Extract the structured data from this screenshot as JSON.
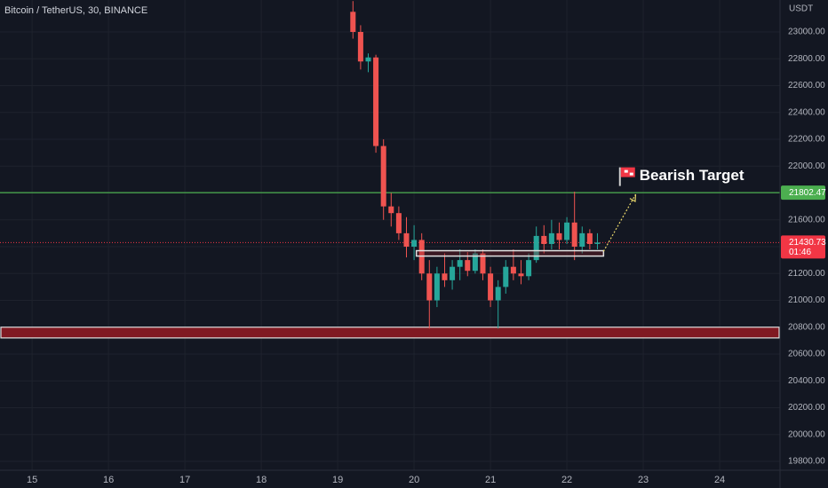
{
  "chart_data": {
    "type": "candlestick",
    "title": "Bitcoin / TetherUS, 30, BINANCE",
    "y_axis_label": "USDT",
    "x": [
      19.2,
      19.3,
      19.4,
      19.5,
      19.6,
      19.7,
      19.8,
      19.9,
      20.0,
      20.1,
      20.2,
      20.3,
      20.4,
      20.5,
      20.6,
      20.7,
      20.8,
      20.9,
      21.0,
      21.1,
      21.2,
      21.3,
      21.4,
      21.5,
      21.6,
      21.7,
      21.8,
      21.9,
      22.0,
      22.1,
      22.2,
      22.3,
      22.4
    ],
    "open": [
      23150,
      23000,
      22780,
      22810,
      22150,
      21700,
      21650,
      21500,
      21400,
      21450,
      21200,
      21000,
      21200,
      21150,
      21250,
      21300,
      21220,
      21350,
      21200,
      21000,
      21100,
      21250,
      21200,
      21180,
      21300,
      21480,
      21420,
      21500,
      21450,
      21580,
      21400,
      21500,
      21420
    ],
    "high": [
      23230,
      23050,
      22840,
      22830,
      22200,
      21800,
      21700,
      21620,
      21560,
      21500,
      21300,
      21250,
      21350,
      21300,
      21380,
      21360,
      21380,
      21380,
      21250,
      21150,
      21300,
      21380,
      21300,
      21350,
      21550,
      21560,
      21600,
      21580,
      21620,
      21810,
      21550,
      21530,
      21500
    ],
    "low": [
      22950,
      22720,
      22700,
      22100,
      21600,
      21550,
      21450,
      21320,
      21300,
      21150,
      20790,
      20950,
      21100,
      21080,
      21150,
      21180,
      21200,
      21150,
      20950,
      20790,
      21050,
      21150,
      21120,
      21150,
      21280,
      21350,
      21380,
      21380,
      21420,
      21300,
      21350,
      21380,
      21380
    ],
    "close": [
      23000,
      22780,
      22810,
      22150,
      21700,
      21650,
      21500,
      21400,
      21450,
      21200,
      21000,
      21200,
      21150,
      21250,
      21300,
      21220,
      21350,
      21200,
      21000,
      21100,
      21250,
      21200,
      21180,
      21300,
      21480,
      21420,
      21500,
      21450,
      21580,
      21400,
      21500,
      21420,
      21430.73
    ],
    "up_color": "#26a69a",
    "down_color": "#ef5350",
    "xlim": [
      14.58,
      24.79
    ],
    "xticks": [
      15,
      16,
      17,
      18,
      19,
      20,
      21,
      22,
      23,
      24
    ],
    "ylim": [
      19734,
      23238
    ],
    "yticks": [
      {
        "value": 19800,
        "label": "19800.00"
      },
      {
        "value": 20000,
        "label": "20000.00"
      },
      {
        "value": 20200,
        "label": "20200.00"
      },
      {
        "value": 20400,
        "label": "20400.00"
      },
      {
        "value": 20600,
        "label": "20600.00"
      },
      {
        "value": 20800,
        "label": "20800.00"
      },
      {
        "value": 21000,
        "label": "21000.00"
      },
      {
        "value": 21200,
        "label": "21200.00"
      },
      {
        "value": 21400,
        "label": "21400.00"
      },
      {
        "value": 21600,
        "label": "21600.00"
      },
      {
        "value": 21800,
        "label": "21800.00"
      },
      {
        "value": 22000,
        "label": "22000.00"
      },
      {
        "value": 22200,
        "label": "22200.00"
      },
      {
        "value": 22400,
        "label": "22400.00"
      },
      {
        "value": 22600,
        "label": "22600.00"
      },
      {
        "value": 22800,
        "label": "22800.00"
      },
      {
        "value": 23000,
        "label": "23000.00"
      }
    ],
    "grid": true,
    "level": {
      "value": 21802.47,
      "color": "#4caf50"
    },
    "last_price": {
      "value": 21430.73,
      "countdown": "01:46",
      "color": "#f23645"
    },
    "support_zone": {
      "ylim": [
        20720,
        20800
      ],
      "color": "#801922"
    },
    "range_box": {
      "xlim": [
        20.03,
        22.48
      ],
      "ylim": [
        21330,
        21370
      ]
    },
    "arrow": {
      "x": [
        22.48,
        22.9
      ],
      "y": [
        21365,
        21790
      ],
      "color": "#e8d66a"
    },
    "annotation": {
      "text": "Bearish Target",
      "x": 22.95,
      "y": 21925
    }
  }
}
